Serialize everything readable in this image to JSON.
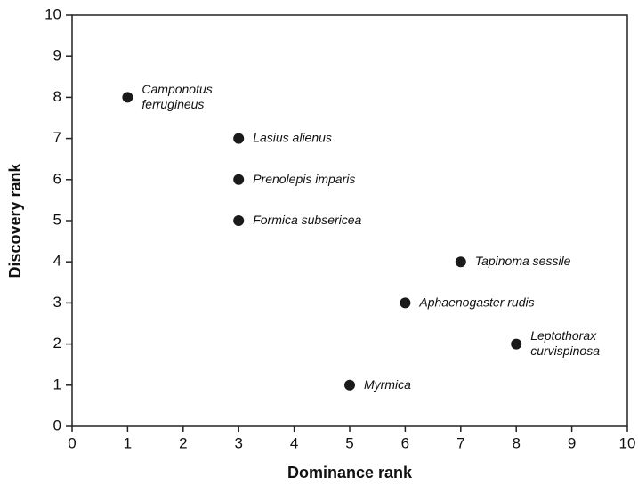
{
  "chart_data": {
    "type": "scatter",
    "x_label": "Dominance rank",
    "y_label": "Discovery rank",
    "x": [
      1,
      3,
      3,
      3,
      7,
      6,
      8,
      5
    ],
    "values": [
      8,
      7,
      6,
      5,
      4,
      3,
      2,
      1
    ],
    "labels": [
      [
        "Camponotus",
        "ferrugineus"
      ],
      [
        "Lasius alienus"
      ],
      [
        "Prenolepis imparis"
      ],
      [
        "Formica subsericea"
      ],
      [
        "Tapinoma sessile"
      ],
      [
        "Aphaenogaster rudis"
      ],
      [
        "Leptothorax",
        "curvispinosa"
      ],
      [
        "Myrmica"
      ]
    ],
    "color": "#1a1a1a",
    "xlim": [
      0,
      10
    ],
    "ylim": [
      0,
      10
    ],
    "xticks": [
      0,
      1,
      2,
      3,
      4,
      5,
      6,
      7,
      8,
      9,
      10
    ],
    "yticks": [
      0,
      1,
      2,
      3,
      4,
      5,
      6,
      7,
      8,
      9,
      10
    ],
    "grid": false
  }
}
